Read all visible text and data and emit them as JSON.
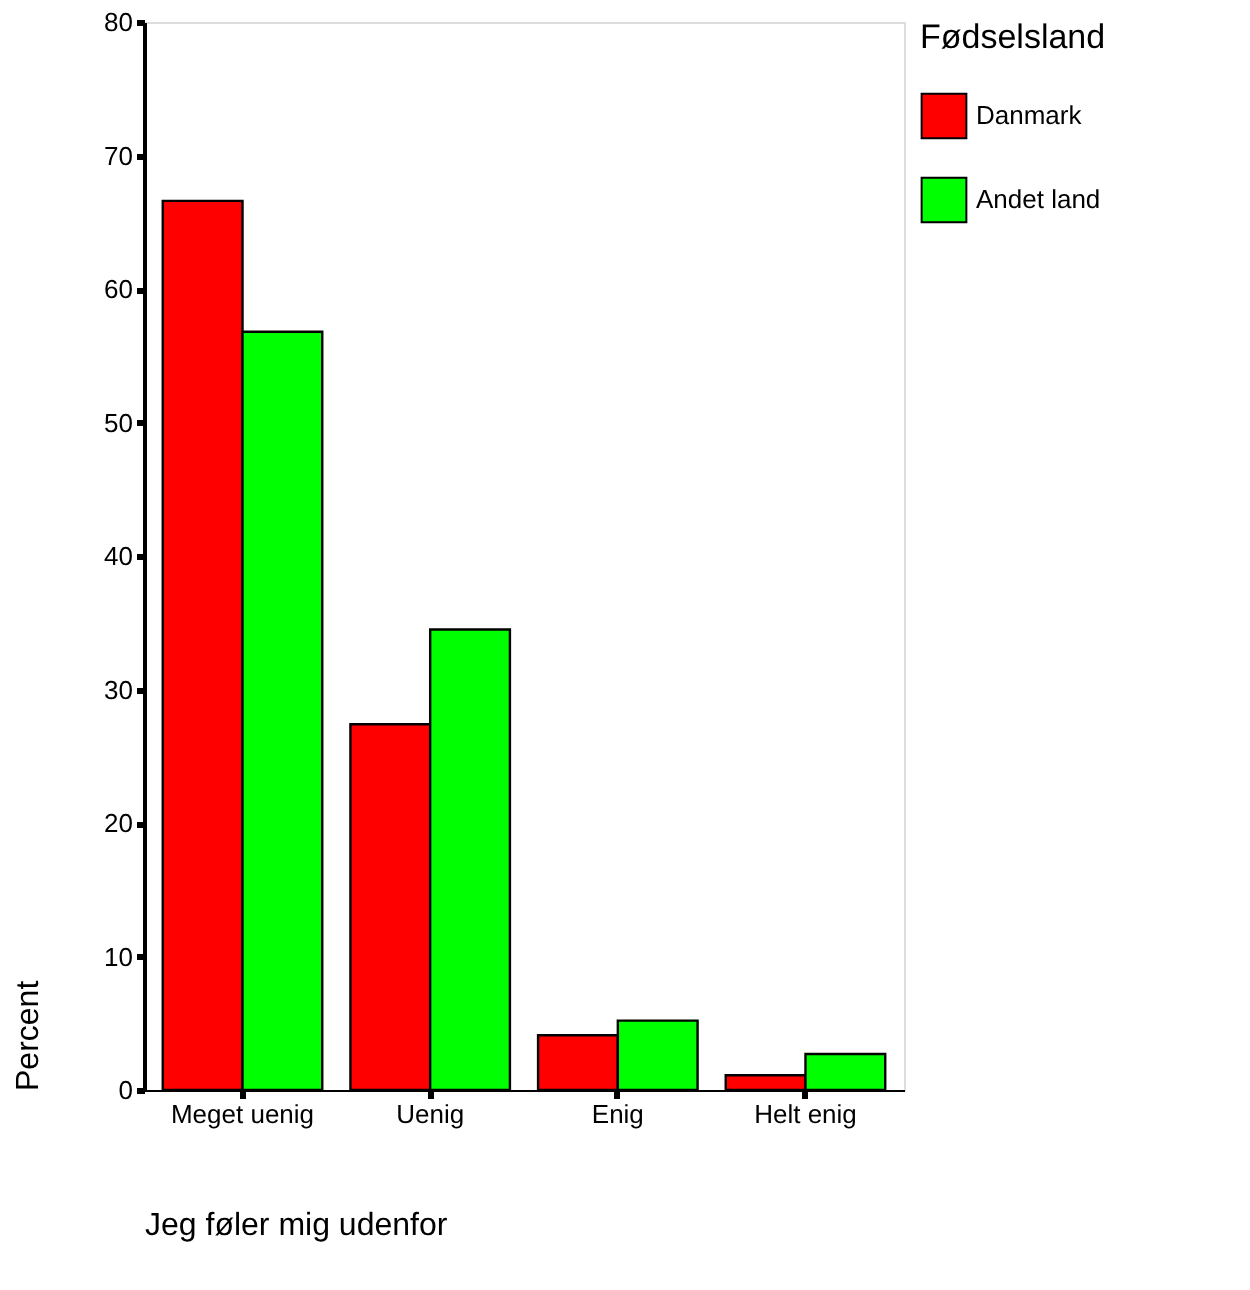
{
  "chart_data": {
    "type": "bar",
    "xlabel": "Jeg føler mig udenfor",
    "ylabel": "Percent",
    "legend_title": "Fødselsland",
    "categories": [
      "Meget uenig",
      "Uenig",
      "Enig",
      "Helt enig"
    ],
    "series": [
      {
        "name": "Danmark",
        "color": "#ff0000",
        "values": [
          66.6,
          27.4,
          4.1,
          1.1
        ]
      },
      {
        "name": "Andet land",
        "color": "#00ff00",
        "values": [
          56.8,
          34.5,
          5.2,
          2.7
        ]
      }
    ],
    "ylim": [
      0,
      80
    ],
    "yticks": [
      0,
      10,
      20,
      30,
      40,
      50,
      60,
      70,
      80
    ],
    "grid": false,
    "legend": "right"
  }
}
